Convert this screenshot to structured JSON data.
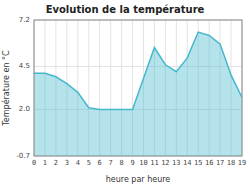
{
  "chart_data": {
    "type": "area",
    "title": "Evolution de la température",
    "x_label": "heure par heure",
    "y_label": "Température en °C",
    "x": [
      0,
      1,
      2,
      3,
      4,
      5,
      6,
      7,
      8,
      9,
      10,
      11,
      12,
      13,
      14,
      15,
      16,
      17,
      18,
      19
    ],
    "values": [
      4.1,
      4.1,
      3.9,
      3.5,
      3.0,
      2.1,
      2.0,
      2.0,
      2.0,
      2.0,
      3.8,
      5.6,
      4.6,
      4.2,
      5.0,
      6.5,
      6.3,
      5.8,
      4.0,
      2.7
    ],
    "color": "#45b8cc",
    "xlim": [
      0,
      19
    ],
    "xticks": [
      0,
      1,
      2,
      3,
      4,
      5,
      6,
      7,
      8,
      9,
      10,
      11,
      12,
      13,
      14,
      15,
      16,
      17,
      18,
      19
    ],
    "ylim": [
      -0.7,
      7.2
    ],
    "yticks": [
      -0.7,
      {
        "value": 2.0,
        "label": "2.0"
      },
      4.5,
      7.2
    ],
    "grid": true
  }
}
